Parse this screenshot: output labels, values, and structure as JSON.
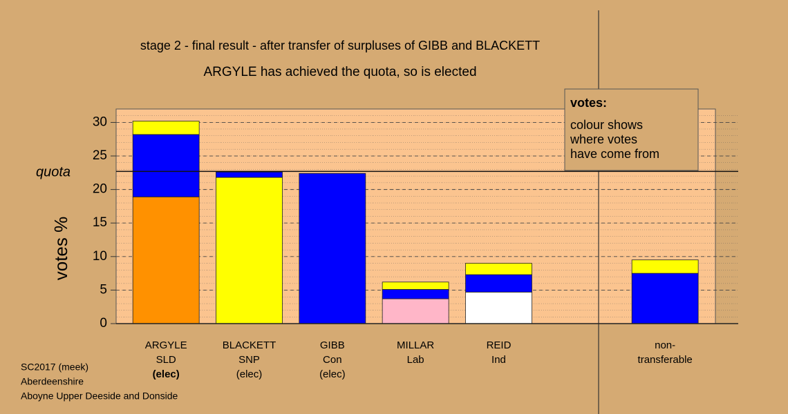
{
  "chart_data": {
    "type": "stacked_bar",
    "title": "stage 2 - final result - after transfer of surpluses of GIBB and BLACKETT",
    "subtitle": "ARGYLE has achieved the quota, so is elected",
    "y_label": "votes %",
    "categories": [
      [
        "ARGYLE",
        "SLD",
        "(elec)"
      ],
      [
        "BLACKETT",
        "SNP",
        "(elec)"
      ],
      [
        "GIBB",
        "Con",
        "(elec)"
      ],
      [
        "MILLAR",
        "Lab"
      ],
      [
        "REID",
        "Ind"
      ],
      null,
      [
        "non-",
        "transferable"
      ]
    ],
    "series": [
      {
        "color": "#ff9100",
        "values": [
          18.9,
          null,
          null,
          null,
          null,
          null,
          null
        ]
      },
      {
        "color": "#ffff00",
        "values": [
          null,
          21.8,
          null,
          null,
          null,
          null,
          null
        ]
      },
      {
        "color": "#ffb6c8",
        "values": [
          null,
          null,
          null,
          3.7,
          null,
          null,
          null
        ]
      },
      {
        "color": "#ffffff",
        "values": [
          null,
          null,
          null,
          null,
          4.7,
          null,
          null
        ]
      },
      {
        "color": "#0000ff",
        "values": [
          9.3,
          0.8,
          22.4,
          1.4,
          2.6,
          null,
          7.5
        ]
      },
      {
        "color": "#ffff00",
        "values": [
          2.0,
          null,
          null,
          1.1,
          1.7,
          null,
          2.0
        ]
      }
    ],
    "ylim": [
      0,
      32
    ],
    "yticks": [
      0,
      5,
      10,
      15,
      20,
      25,
      30
    ],
    "grid": true,
    "quota": {
      "label": "quota",
      "value": 22.7
    },
    "legend": {
      "title": "votes:",
      "lines": [
        "colour shows",
        "where votes",
        "have come from"
      ]
    },
    "footer": [
      "SC2017 (meek)",
      "Aberdeenshire",
      "Aboyne Upper Deeside and Donside"
    ]
  }
}
